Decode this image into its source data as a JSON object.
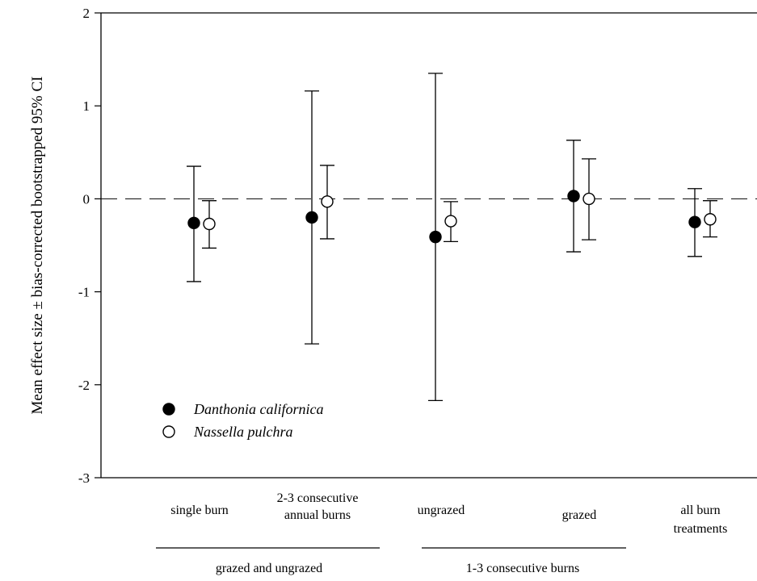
{
  "chart_data": {
    "type": "scatter",
    "ylabel": "Mean effect size ± bias-corrected bootstrapped 95% CI",
    "ylim": [
      -3,
      2
    ],
    "yticks": [
      "2",
      "1",
      "0",
      "-1",
      "-2",
      "-3"
    ],
    "reference_line": 0,
    "legend_position": "lower-left",
    "categories": [
      [
        "single burn"
      ],
      [
        "2-3 consecutive",
        "annual burns"
      ],
      [
        "ungrazed"
      ],
      [
        "grazed"
      ],
      [
        "all burn",
        "treatments"
      ]
    ],
    "groups": [
      {
        "label": "grazed and ungrazed",
        "categories": [
          0,
          1
        ]
      },
      {
        "label": "1-3 consecutive burns",
        "categories": [
          2,
          3
        ]
      }
    ],
    "series": [
      {
        "name": "Danthonia californica",
        "marker": "filled-circle",
        "values": [
          -0.26,
          -0.2,
          -0.41,
          0.03,
          -0.25
        ],
        "ci_low": [
          -0.89,
          -1.56,
          -2.17,
          -0.57,
          -0.62
        ],
        "ci_high": [
          0.35,
          1.16,
          1.35,
          0.63,
          0.11
        ]
      },
      {
        "name": "Nassella pulchra",
        "marker": "open-circle",
        "values": [
          -0.27,
          -0.03,
          -0.24,
          0.0,
          -0.22
        ],
        "ci_low": [
          -0.53,
          -0.43,
          -0.46,
          -0.44,
          -0.41
        ],
        "ci_high": [
          -0.02,
          0.36,
          -0.03,
          0.43,
          -0.02
        ]
      }
    ]
  }
}
